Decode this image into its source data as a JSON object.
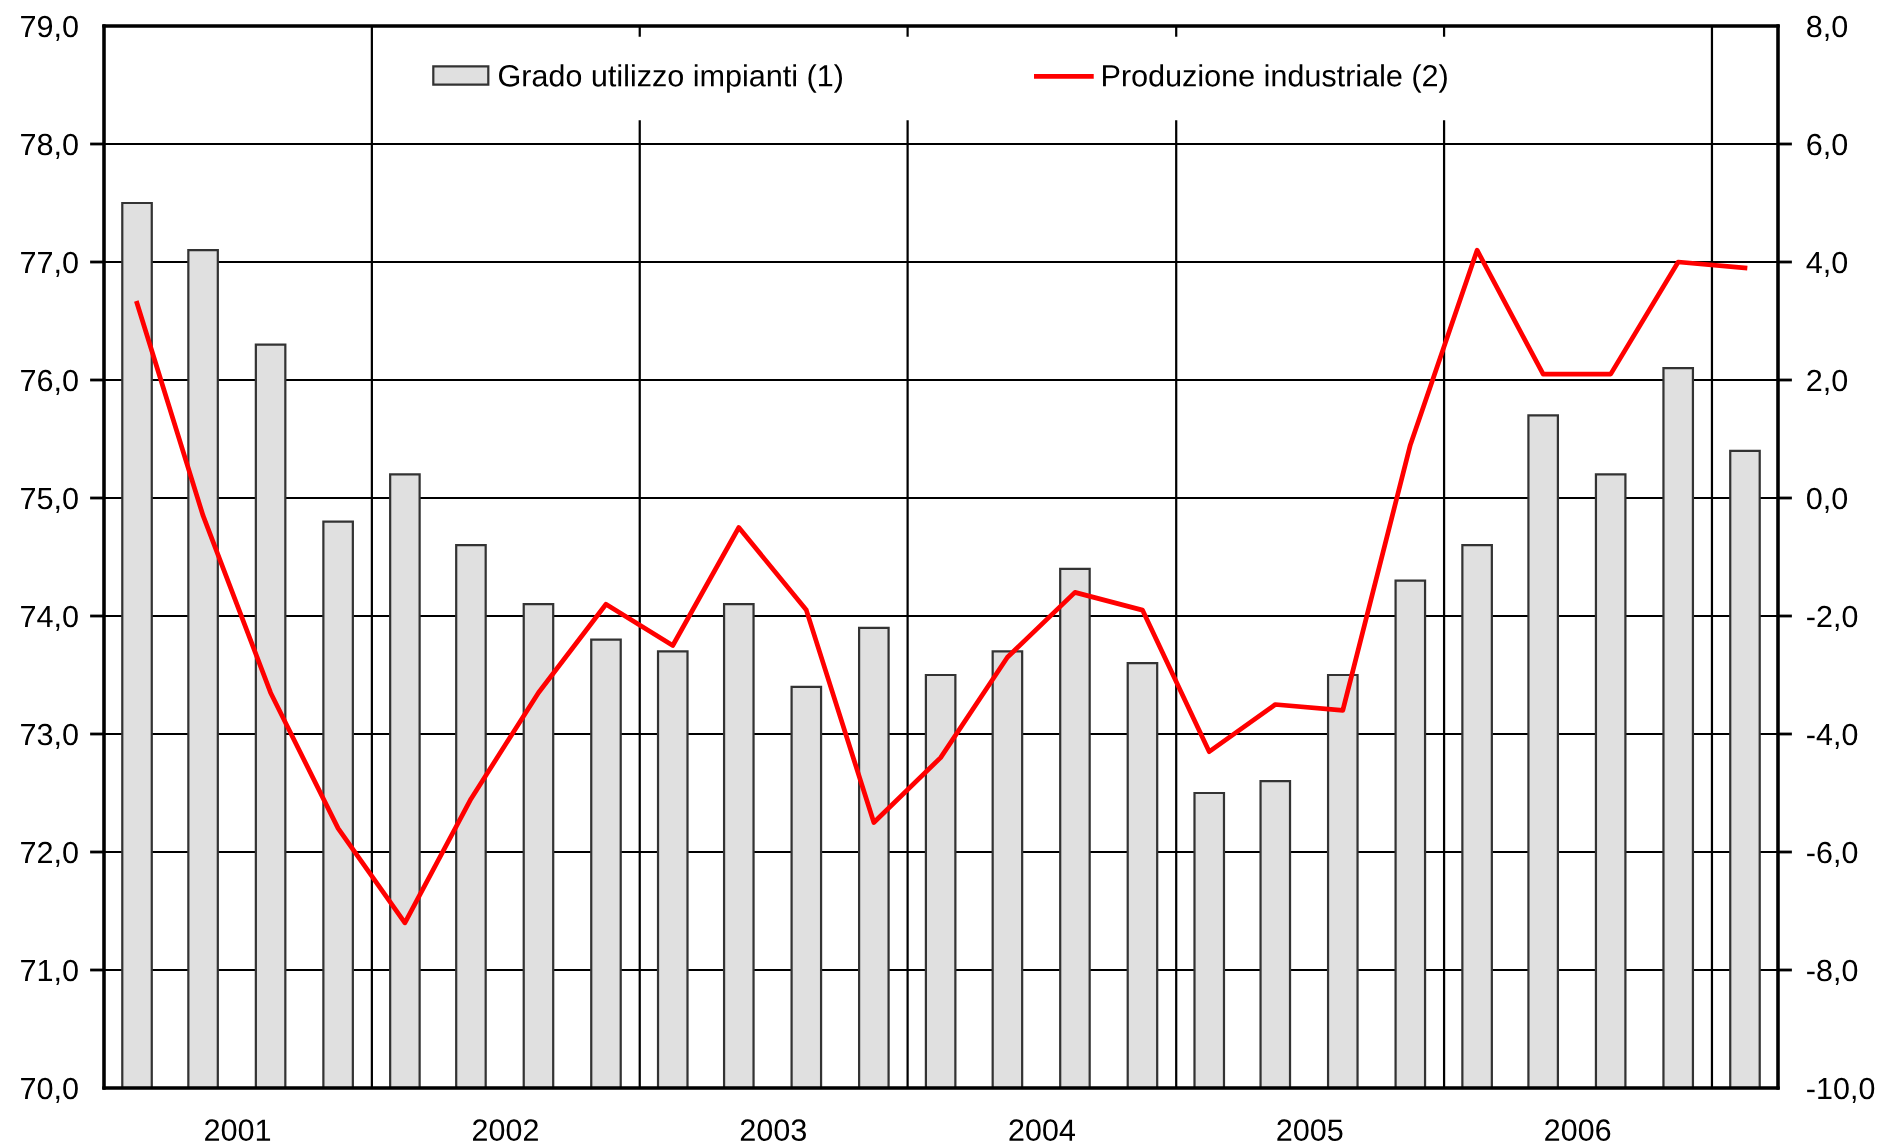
{
  "chart_data": {
    "type": "bar",
    "x": [
      "2001-02-15",
      "2001-05-16",
      "2001-08-16",
      "2001-11-16",
      "2002-02-15",
      "2002-05-16",
      "2002-08-16",
      "2002-11-16",
      "2003-02-15",
      "2003-05-16",
      "2003-08-16",
      "2003-11-16",
      "2004-02-15",
      "2004-05-16",
      "2004-08-16",
      "2004-11-16",
      "2005-02-15",
      "2005-05-16",
      "2005-08-16",
      "2005-11-16",
      "2006-02-15",
      "2006-05-16",
      "2006-08-16",
      "2006-11-16",
      "2007-02-15"
    ],
    "xlim": [
      "2001-01-01",
      "2007-04-01"
    ],
    "xticks": [
      {
        "value": "2001-07-02",
        "label": "2001"
      },
      {
        "value": "2002-07-02",
        "label": "2002"
      },
      {
        "value": "2003-07-02",
        "label": "2003"
      },
      {
        "value": "2004-07-02",
        "label": "2004"
      },
      {
        "value": "2005-07-02",
        "label": "2005"
      },
      {
        "value": "2006-07-02",
        "label": "2006"
      }
    ],
    "ylim": [
      70,
      79
    ],
    "yticks": [
      {
        "value": 70,
        "label": "70,0"
      },
      {
        "value": 71,
        "label": "71,0"
      },
      {
        "value": 72,
        "label": "72,0"
      },
      {
        "value": 73,
        "label": "73,0"
      },
      {
        "value": 74,
        "label": "74,0"
      },
      {
        "value": 75,
        "label": "75,0"
      },
      {
        "value": 76,
        "label": "76,0"
      },
      {
        "value": 77,
        "label": "77,0"
      },
      {
        "value": 78,
        "label": "78,0"
      },
      {
        "value": 79,
        "label": "79,0"
      }
    ],
    "y2lim": [
      -10,
      8
    ],
    "y2ticks": [
      {
        "value": -10,
        "label": "-10,0"
      },
      {
        "value": -8,
        "label": "-8,0"
      },
      {
        "value": -6,
        "label": "-6,0"
      },
      {
        "value": -4,
        "label": "-4,0"
      },
      {
        "value": -2,
        "label": "-2,0"
      },
      {
        "value": 0,
        "label": "0,0"
      },
      {
        "value": 2,
        "label": "2,0"
      },
      {
        "value": 4,
        "label": "4,0"
      },
      {
        "value": 6,
        "label": "6,0"
      },
      {
        "value": 8,
        "label": "8,0"
      }
    ],
    "series": [
      {
        "name": "Grado utilizzo impianti (1)",
        "color": "#e0e0e0",
        "values": [
          77.5,
          77.1,
          76.3,
          74.8,
          75.2,
          74.6,
          74.1,
          73.8,
          73.7,
          74.1,
          73.4,
          73.9,
          73.5,
          73.7,
          74.4,
          73.6,
          72.5,
          72.6,
          73.5,
          74.3,
          74.6,
          75.7,
          75.2,
          76.1,
          75.4
        ]
      },
      {
        "name": "Produzione industriale (2)",
        "type": "line",
        "axis": "y2",
        "color": "#ff0000",
        "values": [
          3.3,
          -0.3,
          -3.3,
          -5.6,
          -7.2,
          -5.1,
          -3.3,
          -1.8,
          -2.5,
          -0.5,
          -1.9,
          -5.5,
          -4.4,
          -2.7,
          -1.6,
          -1.9,
          -4.3,
          -3.5,
          -3.6,
          0.9,
          4.2,
          2.1,
          2.1,
          4.0,
          3.9
        ]
      }
    ],
    "ref_lines": [
      {
        "axis": "x",
        "value": "2002-01-01",
        "color": "#000000"
      },
      {
        "axis": "x",
        "value": "2003-01-01",
        "color": "#000000"
      },
      {
        "axis": "x",
        "value": "2004-01-01",
        "color": "#000000"
      },
      {
        "axis": "x",
        "value": "2005-01-01",
        "color": "#000000"
      },
      {
        "axis": "x",
        "value": "2006-01-01",
        "color": "#000000"
      },
      {
        "axis": "x",
        "value": "2007-01-01",
        "color": "#000000"
      }
    ],
    "grid": "y",
    "legend": "top",
    "line_style": "solid"
  }
}
